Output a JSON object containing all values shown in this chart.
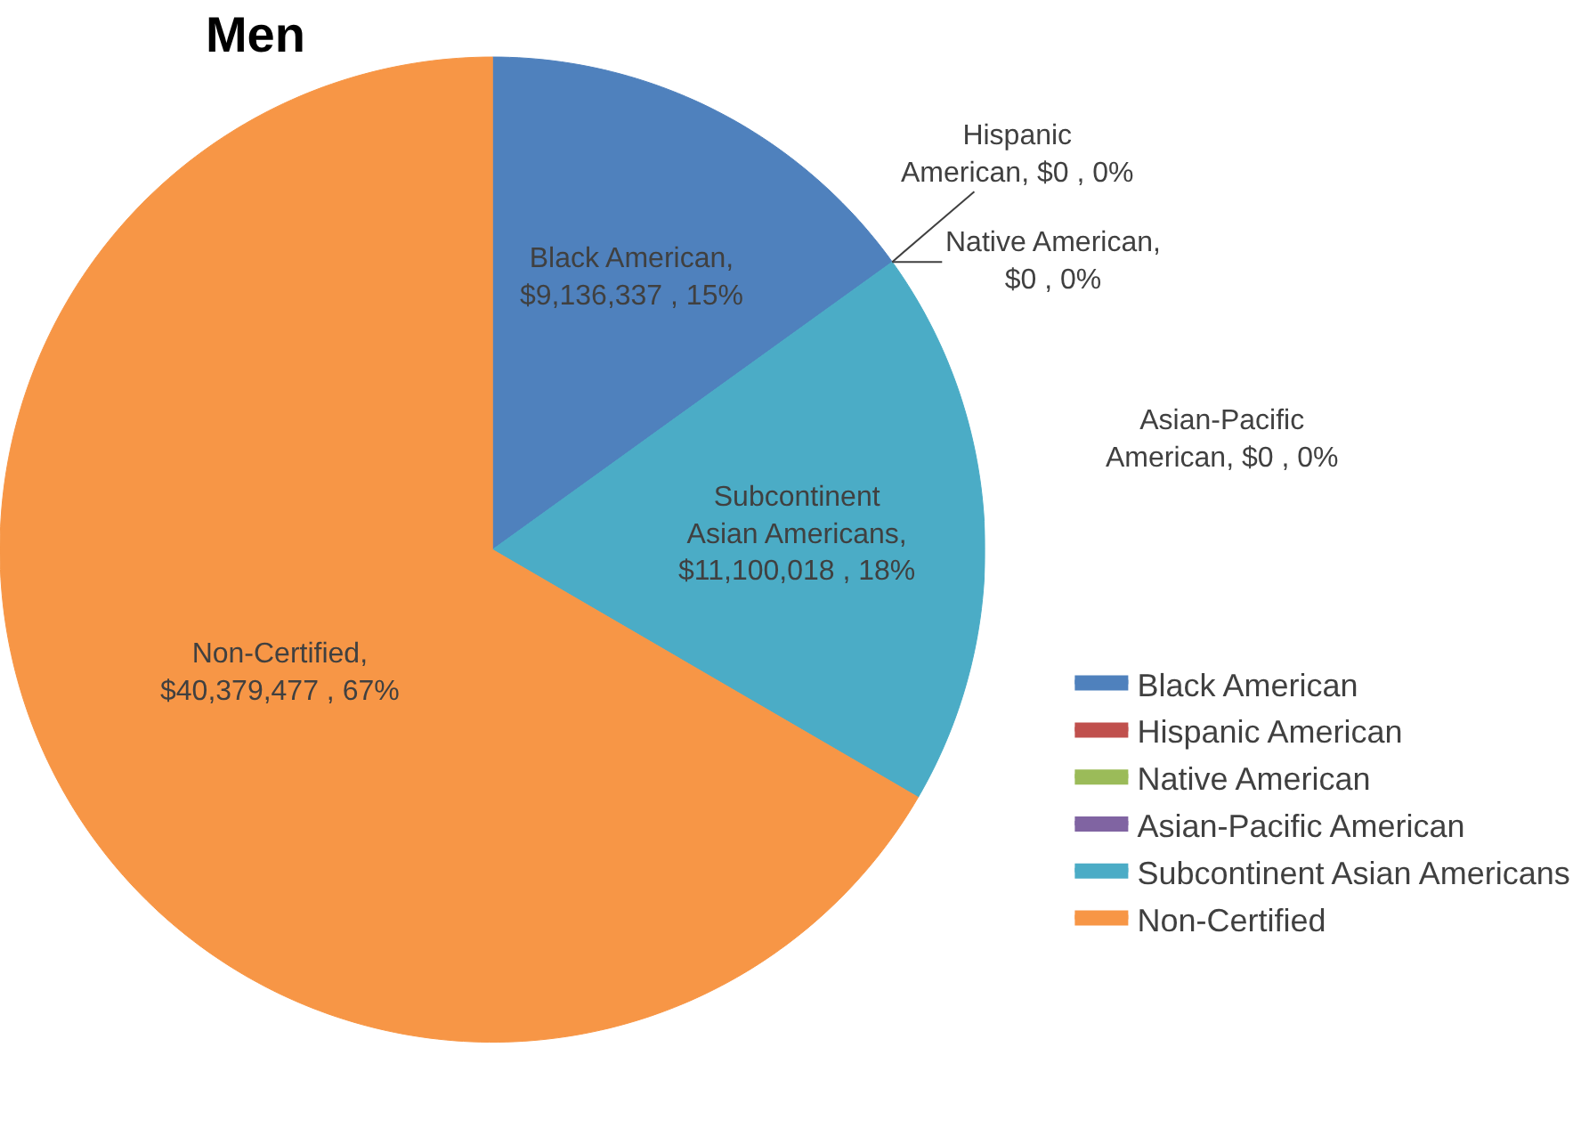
{
  "chart_data": {
    "type": "pie",
    "title": "Men",
    "categories": [
      "Black American",
      "Hispanic American",
      "Native American",
      "Asian-Pacific American",
      "Subcontinent Asian Americans",
      "Non-Certified"
    ],
    "values": [
      9136337,
      0,
      0,
      0,
      11100018,
      40379477
    ],
    "colors": [
      "#4f81bd",
      "#c0504d",
      "#9bbb59",
      "#8064a2",
      "#4bacc6",
      "#f79646"
    ],
    "value_labels": [
      "Black American,\n$9,136,337 , 15%",
      "Hispanic\nAmerican, $0 , 0%",
      "Native American,\n$0 , 0%",
      "Asian-Pacific\nAmerican, $0 , 0%",
      "Subcontinent\nAsian Americans,\n$11,100,018 , 18%",
      "Non-Certified,\n$40,379,477 , 67%"
    ],
    "legend": "right"
  }
}
